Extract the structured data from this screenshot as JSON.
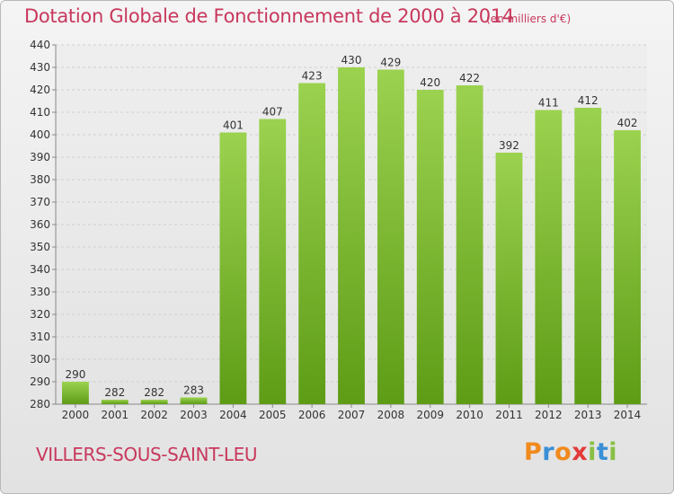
{
  "header": {
    "title": "Dotation Globale de Fonctionnement de 2000 à 2014",
    "unit": "(en milliers d'€)"
  },
  "footer": {
    "commune": "VILLERS-SOUS-SAINT-LEU",
    "logo_text": "Proxiti"
  },
  "colors": {
    "title": "#c8385c",
    "bar_light": "#9bd24f",
    "bar_dark": "#5e9c16",
    "grid": "#cfcfcf"
  },
  "chart_data": {
    "type": "bar",
    "title": "Dotation Globale de Fonctionnement de 2000 à 2014",
    "subtitle": "(en milliers d'€)",
    "xlabel": "",
    "ylabel": "",
    "categories": [
      "2000",
      "2001",
      "2002",
      "2003",
      "2004",
      "2005",
      "2006",
      "2007",
      "2008",
      "2009",
      "2010",
      "2011",
      "2012",
      "2013",
      "2014"
    ],
    "values": [
      290,
      282,
      282,
      283,
      401,
      407,
      423,
      430,
      429,
      420,
      422,
      392,
      411,
      412,
      402
    ],
    "ylim": [
      280,
      440
    ],
    "yticks": [
      280,
      290,
      300,
      310,
      320,
      330,
      340,
      350,
      360,
      370,
      380,
      390,
      400,
      410,
      420,
      430,
      440
    ],
    "grid": true,
    "data_labels": true
  }
}
